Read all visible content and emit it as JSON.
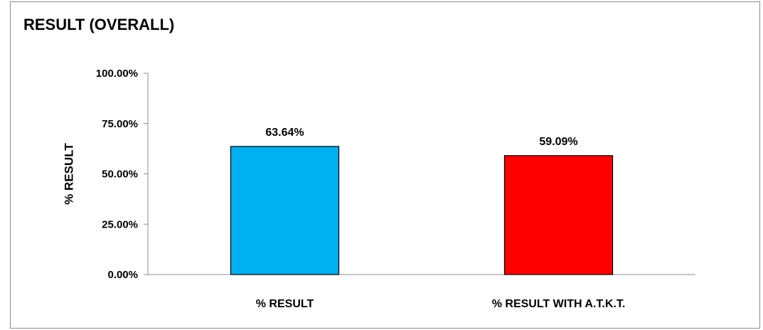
{
  "chart_data": {
    "type": "bar",
    "title": "RESULT (OVERALL)",
    "ylabel": "% RESULT",
    "xlabel": "",
    "categories": [
      "% RESULT",
      "% RESULT WITH A.T.K.T."
    ],
    "values": [
      63.64,
      59.09
    ],
    "data_labels": [
      "63.64%",
      "59.09%"
    ],
    "bar_colors": [
      "#00b0f0",
      "#ff0000"
    ],
    "ylim": [
      0,
      100
    ],
    "yticks": [
      0,
      25,
      50,
      75,
      100
    ],
    "ytick_labels": [
      "0.00%",
      "25.00%",
      "50.00%",
      "75.00%",
      "100.00%"
    ],
    "grid": false,
    "legend": "none"
  }
}
